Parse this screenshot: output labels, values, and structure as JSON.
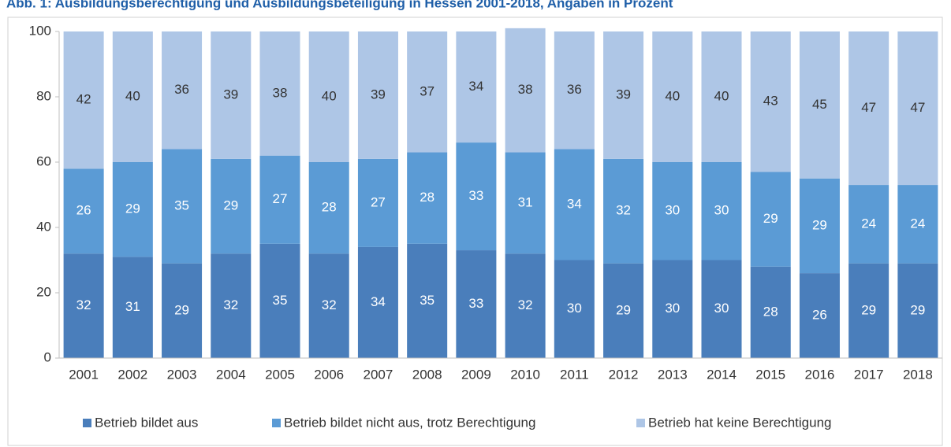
{
  "chart_data": {
    "type": "stacked_bar",
    "title": "Abb. 1: Ausbildungsberechtigung und Ausbildungsbeteiligung in Hessen 2001-2018, Angaben in Prozent",
    "categories": [
      "2001",
      "2002",
      "2003",
      "2004",
      "2005",
      "2006",
      "2007",
      "2008",
      "2009",
      "2010",
      "2011",
      "2012",
      "2013",
      "2014",
      "2015",
      "2016",
      "2017",
      "2018"
    ],
    "series": [
      {
        "name": "Betrieb bildet aus",
        "color": "#4a7ebb",
        "label_color": "#ffffff",
        "values": [
          32,
          31,
          29,
          32,
          35,
          32,
          34,
          35,
          33,
          32,
          30,
          29,
          30,
          30,
          28,
          26,
          29,
          29
        ]
      },
      {
        "name": "Betrieb bildet nicht aus, trotz Berechtigung",
        "color": "#5b9bd5",
        "label_color": "#ffffff",
        "values": [
          26,
          29,
          35,
          29,
          27,
          28,
          27,
          28,
          33,
          31,
          34,
          32,
          30,
          30,
          29,
          29,
          24,
          24
        ]
      },
      {
        "name": "Betrieb hat keine Berechtigung",
        "color": "#aec6e6",
        "label_color": "#333333",
        "values": [
          42,
          40,
          36,
          39,
          38,
          40,
          39,
          37,
          34,
          38,
          36,
          39,
          40,
          40,
          43,
          45,
          47,
          47
        ]
      }
    ],
    "ylim": [
      0,
      100
    ],
    "yticks": [
      0,
      20,
      40,
      60,
      80,
      100
    ],
    "grid": false,
    "legend": "bottom"
  }
}
